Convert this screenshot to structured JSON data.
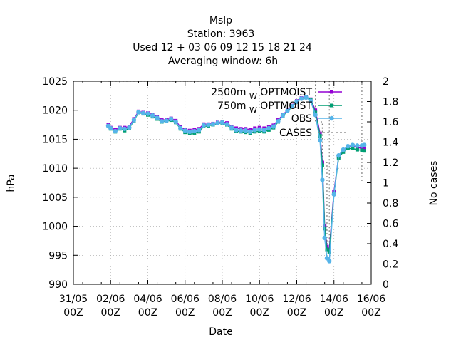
{
  "header": {
    "title": "Mslp",
    "station": "Station:      3963",
    "used": "Used  12 + 03 06 09 12 15 18 21 24",
    "window": "Averaging window:  6h"
  },
  "chart_data": {
    "type": "line",
    "xlabel": "Date",
    "ylabel": "hPa",
    "y2label": "No cases",
    "xlim": [
      0,
      16
    ],
    "ylim": [
      990,
      1025
    ],
    "y2lim": [
      0,
      2
    ],
    "grid": true,
    "legend_position": "top-right",
    "x_ticks": [
      {
        "value": 0,
        "line1": "31/05",
        "line2": "00Z"
      },
      {
        "value": 2,
        "line1": "02/06",
        "line2": "00Z"
      },
      {
        "value": 4,
        "line1": "04/06",
        "line2": "00Z"
      },
      {
        "value": 6,
        "line1": "06/06",
        "line2": "00Z"
      },
      {
        "value": 8,
        "line1": "08/06",
        "line2": "00Z"
      },
      {
        "value": 10,
        "line1": "10/06",
        "line2": "00Z"
      },
      {
        "value": 12,
        "line1": "12/06",
        "line2": "00Z"
      },
      {
        "value": 14,
        "line1": "14/06",
        "line2": "00Z"
      },
      {
        "value": 16,
        "line1": "16/06",
        "line2": "00Z"
      }
    ],
    "y_ticks": [
      990,
      995,
      1000,
      1005,
      1010,
      1015,
      1020,
      1025
    ],
    "y2_ticks": [
      "0",
      "0.2",
      "0.4",
      "0.6",
      "0.8",
      "1",
      "1.2",
      "1.4",
      "1.6",
      "1.8",
      "2"
    ],
    "legend": [
      {
        "name": "2500m",
        "sub": "W",
        "suffix": "OPTMOIST",
        "color": "#9400d3",
        "style": "line-point"
      },
      {
        "name": "750m",
        "sub": "W",
        "suffix": "OPTMOIST",
        "color": "#009e73",
        "style": "line-point"
      },
      {
        "name": "OBS",
        "sub": "",
        "suffix": "",
        "color": "#56b4e9",
        "style": "line-point"
      },
      {
        "name": "CASES",
        "sub": "",
        "suffix": "",
        "color": "#808080",
        "style": "dashed"
      }
    ],
    "series": [
      {
        "name": "2500m W OPTMOIST",
        "color": "#9400d3",
        "x": [
          1.875,
          2.0,
          2.25,
          2.5,
          2.75,
          3.0,
          3.25,
          3.5,
          3.75,
          4.0,
          4.25,
          4.5,
          4.75,
          5.0,
          5.25,
          5.5,
          5.75,
          6.0,
          6.25,
          6.5,
          6.75,
          7.0,
          7.25,
          7.5,
          7.75,
          8.0,
          8.25,
          8.5,
          8.75,
          9.0,
          9.25,
          9.5,
          9.75,
          10.0,
          10.25,
          10.5,
          10.75,
          11.0,
          11.25,
          11.5,
          11.75,
          12.0,
          12.25,
          12.5,
          12.75,
          13.0,
          13.25,
          13.375,
          13.5,
          13.625,
          13.75,
          14.0,
          14.25,
          14.5,
          14.75,
          15.0,
          15.25,
          15.5,
          15.625
        ],
        "values": [
          1017.5,
          1017.0,
          1016.6,
          1017.0,
          1017.0,
          1017.2,
          1018.5,
          1019.8,
          1019.6,
          1019.5,
          1019.2,
          1018.8,
          1018.3,
          1018.4,
          1018.6,
          1018.2,
          1017.1,
          1016.7,
          1016.5,
          1016.6,
          1016.8,
          1017.6,
          1017.6,
          1017.7,
          1017.9,
          1018.0,
          1017.8,
          1017.2,
          1016.9,
          1016.8,
          1016.8,
          1016.6,
          1016.9,
          1017.0,
          1016.9,
          1017.1,
          1017.4,
          1018.3,
          1019.2,
          1020.0,
          1020.8,
          1021.6,
          1022.1,
          1022.3,
          1021.9,
          1020.0,
          1016.0,
          1011.0,
          1000.0,
          996.5,
          996.0,
          1006.0,
          1012.0,
          1013.0,
          1013.6,
          1013.8,
          1013.6,
          1013.4,
          1013.4
        ]
      },
      {
        "name": "750m W OPTMOIST",
        "color": "#009e73",
        "x": [
          1.875,
          2.0,
          2.25,
          2.5,
          2.75,
          3.0,
          3.25,
          3.5,
          3.75,
          4.0,
          4.25,
          4.5,
          4.75,
          5.0,
          5.25,
          5.5,
          5.75,
          6.0,
          6.25,
          6.5,
          6.75,
          7.0,
          7.25,
          7.5,
          7.75,
          8.0,
          8.25,
          8.5,
          8.75,
          9.0,
          9.25,
          9.5,
          9.75,
          10.0,
          10.25,
          10.5,
          10.75,
          11.0,
          11.25,
          11.5,
          11.75,
          12.0,
          12.25,
          12.5,
          12.75,
          13.0,
          13.25,
          13.375,
          13.5,
          13.625,
          13.75,
          14.0,
          14.25,
          14.5,
          14.75,
          15.0,
          15.25,
          15.5,
          15.625
        ],
        "values": [
          1017.2,
          1016.8,
          1016.3,
          1016.8,
          1016.5,
          1016.9,
          1018.2,
          1019.6,
          1019.4,
          1019.2,
          1018.9,
          1018.5,
          1018.0,
          1018.1,
          1018.3,
          1017.9,
          1016.8,
          1016.2,
          1016.0,
          1016.1,
          1016.3,
          1017.2,
          1017.3,
          1017.5,
          1017.7,
          1017.8,
          1017.5,
          1016.8,
          1016.4,
          1016.3,
          1016.2,
          1016.1,
          1016.3,
          1016.4,
          1016.3,
          1016.6,
          1017.0,
          1018.0,
          1019.0,
          1019.8,
          1020.6,
          1021.4,
          1022.0,
          1022.2,
          1021.8,
          1019.6,
          1015.6,
          1010.5,
          999.6,
          996.0,
          995.6,
          1005.6,
          1011.8,
          1012.8,
          1013.4,
          1013.4,
          1013.2,
          1013.1,
          1013.0
        ]
      },
      {
        "name": "OBS",
        "color": "#56b4e9",
        "x": [
          1.875,
          2.0,
          2.25,
          2.5,
          2.75,
          3.0,
          3.25,
          3.5,
          3.75,
          4.0,
          4.25,
          4.5,
          4.75,
          5.0,
          5.25,
          5.5,
          5.75,
          6.0,
          6.25,
          6.5,
          6.75,
          7.0,
          7.25,
          7.5,
          7.75,
          8.0,
          8.25,
          8.5,
          8.75,
          9.0,
          9.25,
          9.5,
          9.75,
          10.0,
          10.25,
          10.5,
          10.75,
          11.0,
          11.25,
          11.5,
          11.75,
          12.0,
          12.25,
          12.5,
          12.75,
          13.0,
          13.25,
          13.375,
          13.5,
          13.625,
          13.75,
          14.0,
          14.25,
          14.5,
          14.75,
          15.0,
          15.25,
          15.5,
          15.625
        ],
        "values": [
          1017.3,
          1016.9,
          1016.4,
          1016.9,
          1016.8,
          1017.0,
          1018.3,
          1019.7,
          1019.5,
          1019.4,
          1019.1,
          1018.7,
          1018.1,
          1018.2,
          1018.5,
          1018.0,
          1016.9,
          1016.5,
          1016.3,
          1016.4,
          1016.6,
          1017.4,
          1017.5,
          1017.6,
          1017.8,
          1017.9,
          1017.6,
          1017.0,
          1016.6,
          1016.5,
          1016.5,
          1016.3,
          1016.6,
          1016.7,
          1016.6,
          1016.9,
          1017.2,
          1018.1,
          1019.1,
          1019.9,
          1020.7,
          1021.5,
          1022.0,
          1022.2,
          1021.6,
          1019.2,
          1014.8,
          1008.0,
          998.0,
          994.5,
          994.0,
          1005.5,
          1012.2,
          1013.2,
          1013.8,
          1014.0,
          1013.9,
          1013.9,
          1014.0
        ]
      }
    ],
    "cases": {
      "name": "CASES",
      "color": "#808080",
      "x": [
        1.875,
        13.0,
        13.0,
        13.375,
        13.375,
        13.625,
        13.625,
        13.75,
        13.75,
        15.5,
        15.5
      ],
      "values": [
        2,
        2,
        1.6,
        1.6,
        1.2,
        1.2,
        0.4,
        0.4,
        2,
        2,
        1.0
      ]
    }
  }
}
